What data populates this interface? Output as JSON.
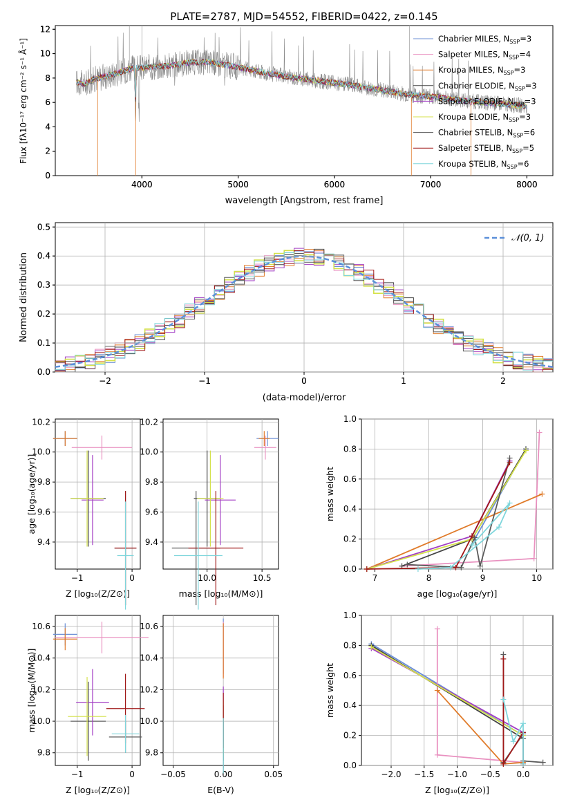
{
  "figure": {
    "title": "PLATE=2787, MJD=54552, FIBERID=0422, z=0.145",
    "model_colors": [
      "#6b8fd6",
      "#e991c0",
      "#e07b2a",
      "#444444",
      "#a23dc4",
      "#d4e14a",
      "#5a5a5a",
      "#a01818",
      "#7fd6dc"
    ],
    "fit_color": "#888888",
    "gauss_color": "#5b8fd9"
  },
  "chart_data": [
    {
      "id": "spectrum",
      "type": "line",
      "xlabel": "wavelength [Angstrom, rest frame]",
      "ylabel": "Flux [fλ10⁻¹⁷ erg cm⁻² s⁻¹ Å⁻¹]",
      "xlim": [
        3100,
        8270
      ],
      "ylim": [
        0,
        12.3
      ],
      "xticks": [
        "4000",
        "5000",
        "6000",
        "7000",
        "8000"
      ],
      "xtick_values": [
        4000,
        5000,
        6000,
        7000,
        8000
      ],
      "yticks": [
        "0",
        "2",
        "4",
        "6",
        "8",
        "10",
        "12"
      ],
      "ytick_values": [
        0,
        2,
        4,
        6,
        8,
        10,
        12
      ],
      "legend_position": "upper-right",
      "legend": [
        {
          "name": "Chabrier MILES",
          "nssp": "3"
        },
        {
          "name": "Salpeter MILES",
          "nssp": "4"
        },
        {
          "name": "Kroupa MILES",
          "nssp": "3"
        },
        {
          "name": "Chabrier ELODIE",
          "nssp": "3"
        },
        {
          "name": "Salpeter ELODIE",
          "nssp": "3"
        },
        {
          "name": "Kroupa ELODIE",
          "nssp": "3"
        },
        {
          "name": "Chabrier STELIB",
          "nssp": "6"
        },
        {
          "name": "Salpeter STELIB",
          "nssp": "5"
        },
        {
          "name": "Kroupa STELIB",
          "nssp": "6"
        }
      ],
      "continuum": [
        [
          3320,
          7.7
        ],
        [
          3400,
          7.5
        ],
        [
          3500,
          7.9
        ],
        [
          3700,
          8.3
        ],
        [
          3900,
          8.8
        ],
        [
          4100,
          8.9
        ],
        [
          4300,
          9.0
        ],
        [
          4500,
          9.3
        ],
        [
          4700,
          9.3
        ],
        [
          5000,
          8.9
        ],
        [
          5300,
          8.4
        ],
        [
          5600,
          8.0
        ],
        [
          5900,
          7.7
        ],
        [
          6200,
          7.4
        ],
        [
          6500,
          7.0
        ],
        [
          6800,
          6.6
        ],
        [
          7100,
          6.4
        ],
        [
          7400,
          6.1
        ],
        [
          7700,
          5.9
        ],
        [
          8000,
          5.7
        ]
      ],
      "grid": false
    },
    {
      "id": "residuals",
      "type": "line",
      "xlabel": "(data-model)/error",
      "ylabel": "Normed distribution",
      "xlim": [
        -2.5,
        2.5
      ],
      "ylim": [
        0,
        0.515
      ],
      "xticks": [
        "−2",
        "−1",
        "0",
        "1",
        "2"
      ],
      "xtick_values": [
        -2,
        -1,
        0,
        1,
        2
      ],
      "yticks": [
        "0.0",
        "0.1",
        "0.2",
        "0.3",
        "0.4",
        "0.5"
      ],
      "ytick_values": [
        0,
        0.1,
        0.2,
        0.3,
        0.4,
        0.5
      ],
      "legend": [
        {
          "name": "𝒩(0, 1)"
        }
      ],
      "legend_position": "upper-right",
      "grid": true
    },
    {
      "id": "age_vs_Z",
      "type": "scatter",
      "xlabel": "Z [log₁₀(Z/Z⊙)]",
      "ylabel": "age  [log₁₀(age/yr)]",
      "xlim": [
        -1.4,
        0.15
      ],
      "ylim": [
        9.22,
        10.22
      ],
      "xticks": [
        "−1",
        "0"
      ],
      "xtick_values": [
        -1,
        0
      ],
      "yticks": [
        "9.4",
        "9.6",
        "9.8",
        "10.0",
        "10.2"
      ],
      "ytick_values": [
        9.4,
        9.6,
        9.8,
        10.0,
        10.2
      ],
      "grid": true
    },
    {
      "id": "age_vs_mass",
      "type": "scatter",
      "xlabel": "mass [log₁₀(M/M⊙)]",
      "xlim": [
        9.6,
        10.65
      ],
      "ylim": [
        9.22,
        10.22
      ],
      "xticks": [
        "10.0",
        "10.5"
      ],
      "xtick_values": [
        10.0,
        10.5
      ],
      "yticks": [
        "9.4",
        "9.6",
        "9.8",
        "10.0",
        "10.2"
      ],
      "ytick_values": [
        9.4,
        9.6,
        9.8,
        10.0,
        10.2
      ],
      "grid": true
    },
    {
      "id": "weight_vs_age",
      "type": "line",
      "xlabel": "age  [log₁₀(age/yr)]",
      "ylabel": "mass weight",
      "xlim": [
        6.75,
        10.3
      ],
      "ylim": [
        0,
        1
      ],
      "xticks": [
        "7",
        "8",
        "9",
        "10"
      ],
      "xtick_values": [
        7,
        8,
        9,
        10
      ],
      "yticks": [
        "0.0",
        "0.2",
        "0.4",
        "0.6",
        "0.8",
        "1.0"
      ],
      "ytick_values": [
        0,
        0.2,
        0.4,
        0.6,
        0.8,
        1.0
      ],
      "grid": true
    },
    {
      "id": "mass_vs_Z",
      "type": "scatter",
      "xlabel": "Z [log₁₀(Z/Z⊙)]",
      "ylabel": "mass [log₁₀(M/M⊙)]",
      "xlim": [
        -1.4,
        0.15
      ],
      "ylim": [
        9.72,
        10.67
      ],
      "xticks": [
        "−1",
        "0"
      ],
      "xtick_values": [
        -1,
        0
      ],
      "yticks": [
        "9.8",
        "10.0",
        "10.2",
        "10.4",
        "10.6"
      ],
      "ytick_values": [
        9.8,
        10.0,
        10.2,
        10.4,
        10.6
      ],
      "grid": true
    },
    {
      "id": "mass_vs_ebv",
      "type": "scatter",
      "xlabel": "E(B-V)",
      "xlim": [
        -0.06,
        0.055
      ],
      "ylim": [
        9.72,
        10.67
      ],
      "xticks": [
        "−0.05",
        "0.00",
        "0.05"
      ],
      "xtick_values": [
        -0.05,
        0,
        0.05
      ],
      "yticks": [
        "9.8",
        "10.0",
        "10.2",
        "10.4",
        "10.6"
      ],
      "ytick_values": [
        9.8,
        10.0,
        10.2,
        10.4,
        10.6
      ],
      "grid": true
    },
    {
      "id": "weight_vs_Z",
      "type": "line",
      "xlabel": "Z [log₁₀(Z/Z⊙)]",
      "ylabel": "mass weight",
      "xlim": [
        -2.45,
        0.45
      ],
      "ylim": [
        0,
        1
      ],
      "xticks": [
        "−2.0",
        "−1.5",
        "−1.0",
        "−0.5",
        "0.0"
      ],
      "xtick_values": [
        -2,
        -1.5,
        -1,
        -0.5,
        0
      ],
      "yticks": [
        "0.0",
        "0.2",
        "0.4",
        "0.6",
        "0.8",
        "1.0"
      ],
      "ytick_values": [
        0,
        0.2,
        0.4,
        0.6,
        0.8,
        1.0
      ],
      "grid": true
    }
  ],
  "models": {
    "age": [
      10.09,
      10.03,
      10.09,
      9.69,
      9.68,
      9.69,
      9.36,
      9.36,
      9.31
    ],
    "Z": [
      -1.22,
      -0.55,
      -1.22,
      -0.8,
      -0.72,
      -0.82,
      -0.12,
      -0.12,
      -0.12
    ],
    "mass": [
      10.55,
      10.53,
      10.52,
      10.0,
      10.12,
      10.03,
      9.9,
      10.08,
      9.92
    ],
    "ebv": [
      0.0,
      0.0,
      0.0,
      0.0,
      0.0,
      0.0,
      0.0,
      0.0,
      0.0
    ],
    "age_w": [
      [
        [
          8.85,
          0.2
        ],
        [
          9.8,
          0.8
        ]
      ],
      [
        [
          7.5,
          0.02
        ],
        [
          9.95,
          0.07
        ],
        [
          10.05,
          0.91
        ]
      ],
      [
        [
          6.85,
          0.0
        ],
        [
          10.1,
          0.5
        ]
      ],
      [
        [
          7.5,
          0.02
        ],
        [
          8.8,
          0.2
        ],
        [
          9.8,
          0.8
        ]
      ],
      [
        [
          6.85,
          0.0
        ],
        [
          8.8,
          0.22
        ],
        [
          9.5,
          0.72
        ]
      ],
      [
        [
          6.85,
          0.0
        ],
        [
          8.8,
          0.2
        ],
        [
          9.8,
          0.79
        ]
      ],
      [
        [
          7.6,
          0.03
        ],
        [
          8.6,
          0.01
        ],
        [
          8.85,
          0.21
        ],
        [
          8.95,
          0.02
        ],
        [
          9.5,
          0.74
        ]
      ],
      [
        [
          6.85,
          0.0
        ],
        [
          8.5,
          0.01
        ],
        [
          8.8,
          0.22
        ],
        [
          9.5,
          0.71
        ]
      ],
      [
        [
          7.8,
          0.0
        ],
        [
          8.4,
          0.01
        ],
        [
          9.3,
          0.28
        ],
        [
          9.5,
          0.44
        ],
        [
          8.8,
          0.16
        ]
      ]
    ],
    "Z_w": [
      [
        [
          -2.3,
          0.81
        ],
        [
          0.0,
          0.2
        ]
      ],
      [
        [
          -1.3,
          0.91
        ],
        [
          -1.3,
          0.07
        ],
        [
          0.0,
          0.02
        ]
      ],
      [
        [
          -1.3,
          0.5
        ],
        [
          -0.3,
          0.01
        ],
        [
          0.0,
          0.02
        ]
      ],
      [
        [
          -2.3,
          0.8
        ],
        [
          0.0,
          0.18
        ]
      ],
      [
        [
          -2.3,
          0.78
        ],
        [
          0.0,
          0.22
        ]
      ],
      [
        [
          -2.3,
          0.79
        ],
        [
          0.0,
          0.2
        ]
      ],
      [
        [
          -0.3,
          0.74
        ],
        [
          -0.3,
          0.02
        ],
        [
          0.0,
          0.21
        ],
        [
          0.0,
          0.03
        ],
        [
          0.3,
          0.02
        ]
      ],
      [
        [
          -0.3,
          0.71
        ],
        [
          -0.3,
          0.01
        ],
        [
          0.0,
          0.22
        ],
        [
          0.0,
          0.01
        ]
      ],
      [
        [
          -0.3,
          0.44
        ],
        [
          -0.15,
          0.16
        ],
        [
          0.0,
          0.28
        ],
        [
          0.0,
          0.01
        ]
      ]
    ]
  }
}
